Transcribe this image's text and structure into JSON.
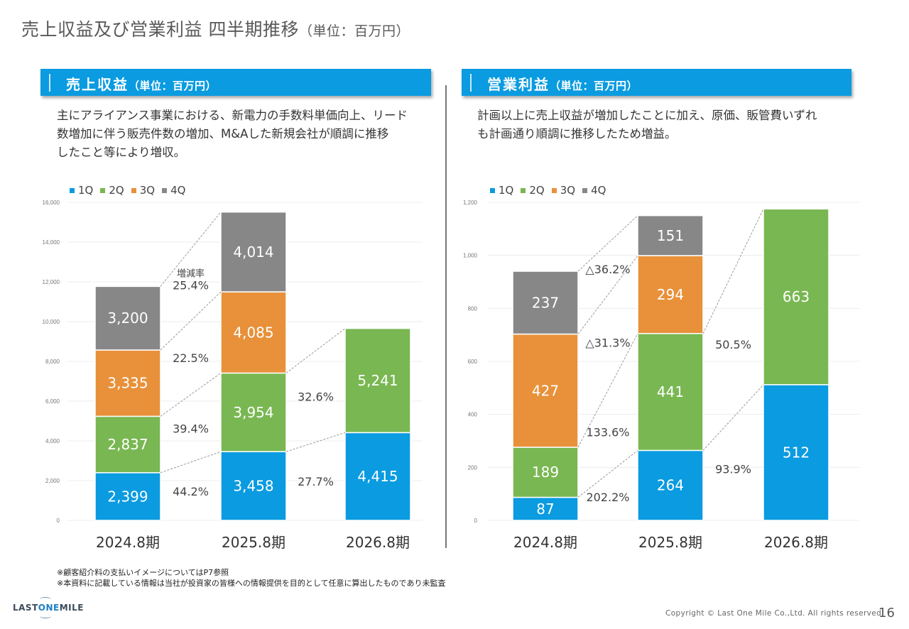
{
  "page": {
    "title": "売上収益及び営業利益 四半期推移",
    "title_unit": "（単位：百万円）",
    "page_number": "16",
    "copyright": "Copyright © Last One Mile Co.,Ltd. All rights reserved",
    "logo": {
      "pre": "LAST",
      "mid": "ONE",
      "post": "MILE"
    },
    "notes": [
      "※顧客紹介料の支払いイメージについてはP7参照",
      "※本資料に記載している情報は当社が投資家の皆様への情報提供を目的として任意に算出したものであり未監査"
    ]
  },
  "sections": [
    {
      "header": "売上収益",
      "header_unit": "（単位：百万円）",
      "description": [
        "主にアライアンス事業における、新電力の手数料単価向上、リード",
        "数増加に伴う販売件数の増加、M&Aした新規会社が順調に推移",
        "したこと等により増収。"
      ]
    },
    {
      "header": "営業利益",
      "header_unit": "（単位：百万円）",
      "description": [
        "計画以上に売上収益が増加したことに加え、原価、販管費いずれ",
        "も計画通り順調に推移したため増益。"
      ]
    }
  ],
  "colors": {
    "1Q": "#0a9be0",
    "2Q": "#79b752",
    "3Q": "#e8913a",
    "4Q": "#878787"
  },
  "chart_data": [
    {
      "type": "bar",
      "stacked": true,
      "title": "売上収益（単位：百万円）",
      "categories": [
        "2024.8期",
        "2025.8期",
        "2026.8期"
      ],
      "legend": [
        "1Q",
        "2Q",
        "3Q",
        "4Q"
      ],
      "legend_position": "top-left",
      "ylim": [
        0,
        16000
      ],
      "yticks": [
        0,
        2000,
        4000,
        6000,
        8000,
        10000,
        12000,
        14000,
        16000
      ],
      "ytick_labels": [
        "0",
        "2,000",
        "4,000",
        "6,000",
        "8,000",
        "10,000",
        "12,000",
        "14,000",
        "16,000"
      ],
      "grid": true,
      "series": [
        {
          "name": "1Q",
          "values": [
            2399,
            3458,
            4415
          ],
          "labels": [
            "2,399",
            "3,458",
            "4,415"
          ]
        },
        {
          "name": "2Q",
          "values": [
            2837,
            3954,
            5241
          ],
          "labels": [
            "2,837",
            "3,954",
            "5,241"
          ]
        },
        {
          "name": "3Q",
          "values": [
            3335,
            4085,
            null
          ],
          "labels": [
            "3,335",
            "4,085",
            ""
          ]
        },
        {
          "name": "4Q",
          "values": [
            3200,
            4014,
            null
          ],
          "labels": [
            "3,200",
            "4,014",
            ""
          ]
        }
      ],
      "growth_annotations": [
        {
          "between": [
            0,
            1
          ],
          "series": "1Q",
          "label": "44.2%"
        },
        {
          "between": [
            0,
            1
          ],
          "series": "2Q",
          "label": "39.4%"
        },
        {
          "between": [
            0,
            1
          ],
          "series": "3Q",
          "label": "22.5%"
        },
        {
          "between": [
            0,
            1
          ],
          "series": "4Q",
          "label": "25.4%",
          "caption": "増減率"
        },
        {
          "between": [
            1,
            2
          ],
          "series": "1Q",
          "label": "27.7%"
        },
        {
          "between": [
            1,
            2
          ],
          "series": "2Q",
          "label": "32.6%"
        }
      ]
    },
    {
      "type": "bar",
      "stacked": true,
      "title": "営業利益（単位：百万円）",
      "categories": [
        "2024.8期",
        "2025.8期",
        "2026.8期"
      ],
      "legend": [
        "1Q",
        "2Q",
        "3Q",
        "4Q"
      ],
      "legend_position": "top-left",
      "ylim": [
        0,
        1200
      ],
      "yticks": [
        0,
        200,
        400,
        600,
        800,
        1000,
        1200
      ],
      "ytick_labels": [
        "0",
        "200",
        "400",
        "600",
        "800",
        "1,000",
        "1,200"
      ],
      "grid": true,
      "series": [
        {
          "name": "1Q",
          "values": [
            87,
            264,
            512
          ],
          "labels": [
            "87",
            "264",
            "512"
          ]
        },
        {
          "name": "2Q",
          "values": [
            189,
            441,
            663
          ],
          "labels": [
            "189",
            "441",
            "663"
          ]
        },
        {
          "name": "3Q",
          "values": [
            427,
            294,
            null
          ],
          "labels": [
            "427",
            "294",
            ""
          ]
        },
        {
          "name": "4Q",
          "values": [
            237,
            151,
            null
          ],
          "labels": [
            "237",
            "151",
            ""
          ]
        }
      ],
      "growth_annotations": [
        {
          "between": [
            0,
            1
          ],
          "series": "1Q",
          "label": "202.2%"
        },
        {
          "between": [
            0,
            1
          ],
          "series": "2Q",
          "label": "133.6%"
        },
        {
          "between": [
            0,
            1
          ],
          "series": "3Q",
          "label": "△31.3%"
        },
        {
          "between": [
            0,
            1
          ],
          "series": "4Q",
          "label": "△36.2%"
        },
        {
          "between": [
            1,
            2
          ],
          "series": "1Q",
          "label": "93.9%"
        },
        {
          "between": [
            1,
            2
          ],
          "series": "2Q",
          "label": "50.5%"
        }
      ]
    }
  ]
}
